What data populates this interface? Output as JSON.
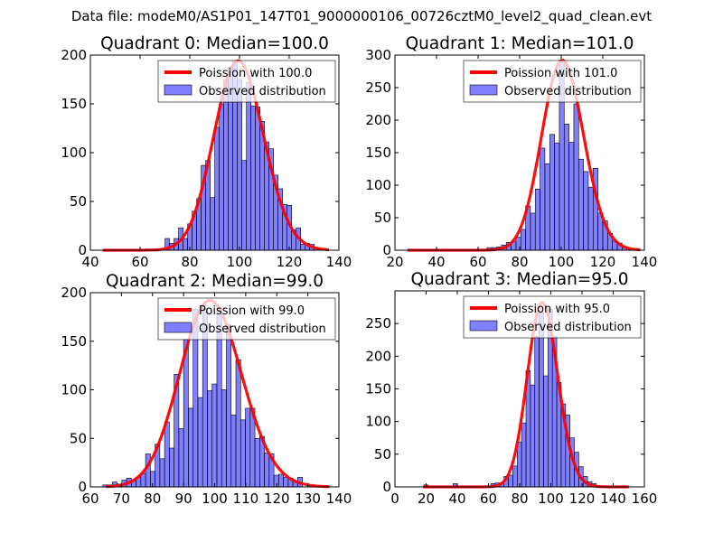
{
  "suptitle": "Data file: modeM0/AS1P01_147T01_9000000106_00726cztM0_level2_quad_clean.evt",
  "colors": {
    "bar_fill": "#0000ff",
    "bar_fill_opacity": 0.5,
    "bar_edge": "#000000",
    "curve": "#ff0000"
  },
  "legend": {
    "observed_label": "Observed distribution",
    "poisson_prefix": "Poission with "
  },
  "chart_data": [
    {
      "type": "bar",
      "title": "Quadrant 0: Median=100.0",
      "legend_placement": "top-right",
      "poisson_label": "Poission with 100.0",
      "poisson_mean": 100.0,
      "poisson_range": [
        45,
        136
      ],
      "poisson_peak": 194,
      "xlim": [
        40,
        140
      ],
      "ylim": [
        0,
        200
      ],
      "xticks": [
        40,
        60,
        80,
        100,
        120,
        140
      ],
      "yticks": [
        0,
        50,
        100,
        150,
        200
      ],
      "bin_start": 68.2,
      "bin_width": 1.82,
      "counts": [
        2,
        12,
        7,
        12,
        23,
        12,
        27,
        40,
        53,
        87,
        92,
        54,
        126,
        150,
        175,
        188,
        194,
        175,
        92,
        172,
        148,
        147,
        132,
        111,
        104,
        77,
        63,
        47,
        46,
        21,
        23,
        6,
        7,
        6,
        2
      ]
    },
    {
      "type": "bar",
      "title": "Quadrant 1: Median=101.0",
      "legend_placement": "top-right",
      "poisson_label": "Poission with 101.0",
      "poisson_mean": 101.0,
      "poisson_range": [
        26,
        138
      ],
      "poisson_peak": 292,
      "xlim": [
        20,
        140
      ],
      "ylim": [
        0,
        300
      ],
      "xticks": [
        20,
        40,
        60,
        80,
        100,
        120,
        140
      ],
      "yticks": [
        0,
        50,
        100,
        150,
        200,
        250,
        300
      ],
      "bin_start": 64.3,
      "bin_width": 2.32,
      "counts": [
        4,
        4,
        5,
        8,
        12,
        13,
        20,
        32,
        68,
        57,
        94,
        157,
        133,
        178,
        165,
        292,
        194,
        166,
        225,
        140,
        121,
        97,
        126,
        57,
        45,
        26,
        14,
        11,
        4
      ]
    },
    {
      "type": "bar",
      "title": "Quadrant 2: Median=99.0",
      "legend_placement": "top-right",
      "poisson_label": "Poission with 99.0",
      "poisson_mean": 99.0,
      "poisson_range": [
        65,
        137
      ],
      "poisson_peak": 192,
      "xlim": [
        60,
        140
      ],
      "ylim": [
        0,
        200
      ],
      "xticks": [
        60,
        70,
        80,
        90,
        100,
        110,
        120,
        130,
        140
      ],
      "yticks": [
        0,
        50,
        100,
        150,
        200
      ],
      "bin_start": 64.0,
      "bin_width": 1.53,
      "counts": [
        2,
        2,
        5,
        3,
        7,
        9,
        6,
        10,
        14,
        34,
        16,
        44,
        29,
        67,
        40,
        116,
        60,
        152,
        81,
        183,
        92,
        184,
        99,
        106,
        184,
        100,
        167,
        74,
        131,
        69,
        81,
        81,
        50,
        52,
        35,
        34,
        12,
        13,
        10,
        9,
        6,
        10
      ]
    },
    {
      "type": "bar",
      "title": "Quadrant 3: Median=95.0",
      "legend_placement": "top-right",
      "poisson_label": "Poission with 95.0",
      "poisson_mean": 95.0,
      "poisson_range": [
        18,
        150
      ],
      "poisson_peak": 282,
      "xlim": [
        0,
        160
      ],
      "ylim": [
        0,
        300
      ],
      "xticks": [
        0,
        20,
        40,
        60,
        80,
        100,
        120,
        140,
        160
      ],
      "yticks": [
        0,
        50,
        100,
        150,
        200,
        250
      ],
      "bin_start": 18.5,
      "bin_width": 2.82,
      "counts": [
        3,
        0,
        0,
        0,
        0,
        0,
        0,
        5,
        0,
        0,
        0,
        0,
        0,
        0,
        0,
        0,
        0,
        0,
        0,
        0,
        0,
        0,
        0,
        0,
        0,
        0,
        0,
        0,
        0,
        0,
        0,
        0,
        0,
        0,
        0,
        0,
        0,
        0,
        0,
        0,
        0,
        0,
        0,
        0,
        0,
        0,
        0,
        0,
        0,
        0,
        0,
        5,
        6,
        6,
        16,
        18,
        32,
        69,
        98,
        178,
        156,
        230,
        267,
        170,
        272,
        230,
        160,
        127,
        110,
        75,
        53,
        31,
        16,
        8,
        5
      ],
      "counts_bin_width_override": 1.0
    }
  ]
}
